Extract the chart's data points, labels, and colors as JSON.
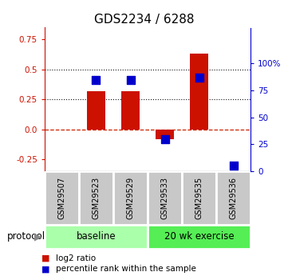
{
  "title": "GDS2234 / 6288",
  "samples": [
    "GSM29507",
    "GSM29523",
    "GSM29529",
    "GSM29533",
    "GSM29535",
    "GSM29536"
  ],
  "log2_ratio": [
    0.0,
    0.32,
    0.32,
    -0.08,
    0.63,
    0.0
  ],
  "percentile_rank": [
    null,
    85,
    85,
    30,
    87,
    5
  ],
  "bar_color": "#cc1100",
  "dot_color": "#0000cc",
  "ylim_left": [
    -0.35,
    0.85
  ],
  "ylim_right": [
    0,
    133.33
  ],
  "yticks_left": [
    -0.25,
    0.0,
    0.25,
    0.5,
    0.75
  ],
  "yticks_right": [
    0,
    25,
    50,
    75,
    100
  ],
  "hlines_y": [
    0.0,
    0.25,
    0.5
  ],
  "hline_styles": [
    "dashed",
    "dotted",
    "dotted"
  ],
  "hline_colors": [
    "#cc2200",
    "#111111",
    "#111111"
  ],
  "hline_lw": [
    0.9,
    0.8,
    0.8
  ],
  "bar_width": 0.55,
  "dot_size": 55,
  "group_spans": [
    [
      0,
      2,
      "baseline",
      "#aaffaa"
    ],
    [
      3,
      5,
      "20 wk exercise",
      "#55ee55"
    ]
  ],
  "legend_items": [
    {
      "label": "log2 ratio",
      "color": "#cc1100"
    },
    {
      "label": "percentile rank within the sample",
      "color": "#0000cc"
    }
  ],
  "sample_cell_color": "#c8c8c8",
  "sample_cell_edge": "#ffffff",
  "title_fontsize": 11,
  "tick_fontsize": 7.5,
  "label_fontsize": 7.0,
  "legend_fontsize": 7.5,
  "protocol_fontsize": 8.5,
  "group_fontsize": 8.5
}
